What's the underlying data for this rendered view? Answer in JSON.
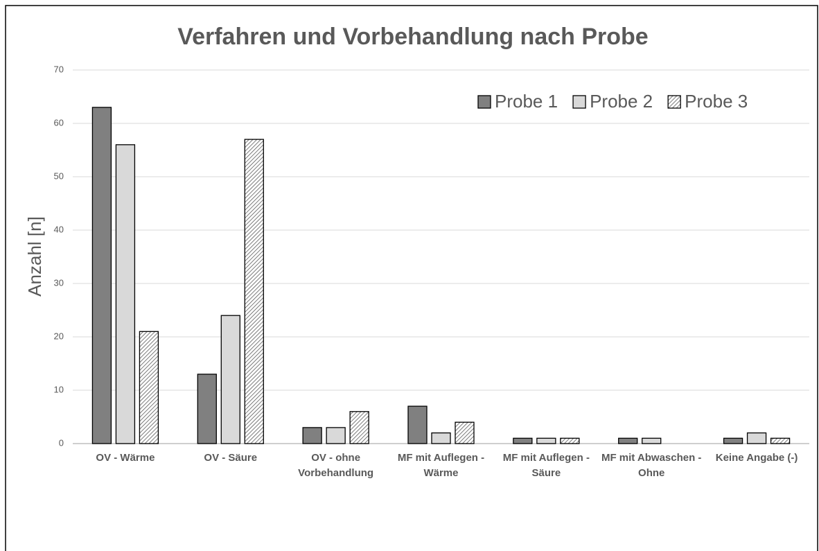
{
  "chart_data": {
    "type": "bar",
    "title": "Verfahren und Vorbehandlung nach Probe",
    "y_label": "Anzahl [n]",
    "categories": [
      "OV - Wärme",
      "OV - Säure",
      "OV - ohne Vorbehandlung",
      "MF mit Auflegen - Wärme",
      "MF mit Auflegen - Säure",
      "MF mit Abwaschen - Ohne",
      "Keine Angabe (-)"
    ],
    "series": [
      {
        "name": "Probe 1",
        "color": "#808080",
        "values": [
          63,
          13,
          3,
          7,
          1,
          1,
          1
        ]
      },
      {
        "name": "Probe 2",
        "color": "#d9d9d9",
        "values": [
          56,
          24,
          3,
          2,
          1,
          1,
          2
        ]
      },
      {
        "name": "Probe 3",
        "color": "#595959",
        "hatch": true,
        "values": [
          21,
          57,
          6,
          4,
          1,
          0,
          1
        ]
      }
    ],
    "ylim": [
      0,
      70
    ],
    "yticks": [
      0,
      10,
      20,
      30,
      40,
      50,
      60,
      70
    ],
    "grid": true,
    "legend": "top-right"
  }
}
